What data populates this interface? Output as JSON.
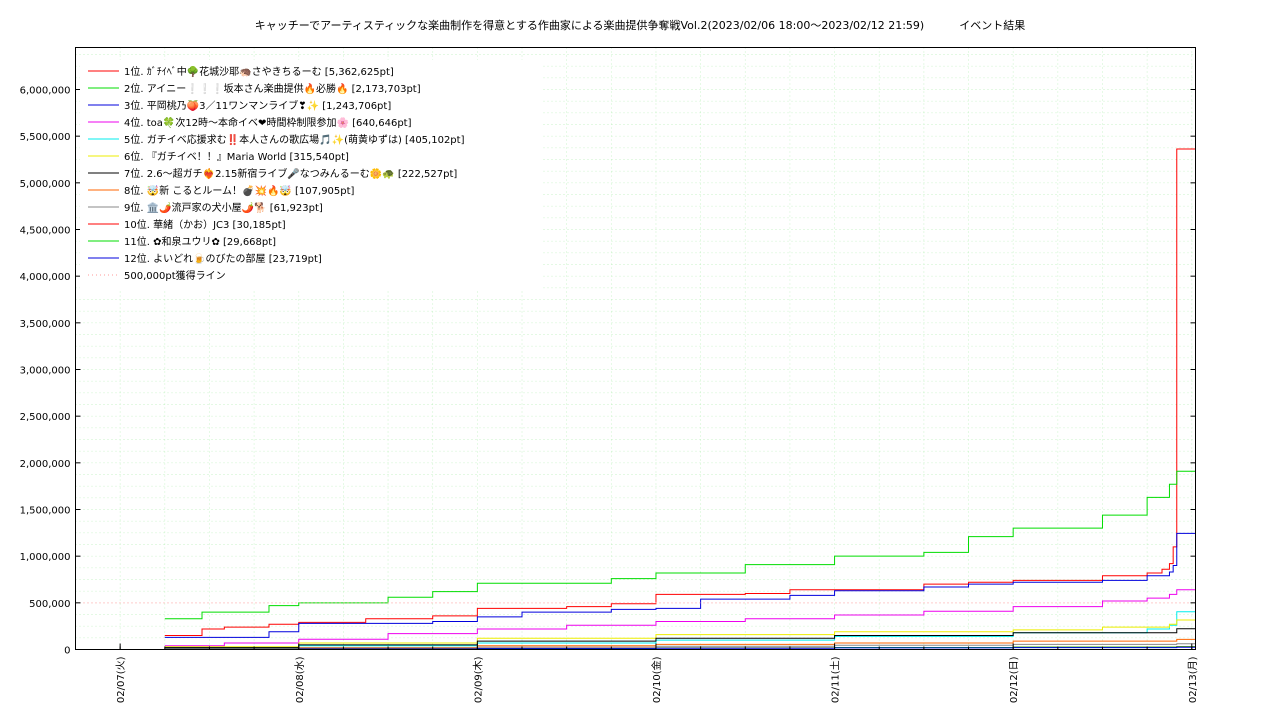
{
  "chart_data": {
    "type": "line",
    "title": "キャッチーでアーティスティックな楽曲制作を得意とする作曲家による楽曲提供争奪戦Vol.2(2023/02/06 18:00～2023/02/12 21:59)          イベント結果",
    "xlabel": "",
    "ylabel": "",
    "x_range": [
      "2023-02-06 18:00",
      "2023-02-13 00:30"
    ],
    "ylim": [
      0,
      6450000
    ],
    "y_ticks": [
      0,
      500000,
      1000000,
      1500000,
      2000000,
      2500000,
      3000000,
      3500000,
      4000000,
      4500000,
      5000000,
      5500000,
      6000000
    ],
    "y_tick_labels": [
      "0",
      "500,000",
      "1,000,000",
      "1,500,000",
      "2,000,000",
      "2,500,000",
      "3,000,000",
      "3,500,000",
      "4,000,000",
      "4,500,000",
      "5,000,000",
      "5,500,000",
      "6,000,000"
    ],
    "x_ticks": [
      "2023-02-07",
      "2023-02-08",
      "2023-02-09",
      "2023-02-10",
      "2023-02-11",
      "2023-02-12",
      "2023-02-13"
    ],
    "x_tick_labels": [
      "02/07(火)",
      "02/08(水)",
      "02/09(木)",
      "02/10(金)",
      "02/11(土)",
      "02/12(日)",
      "02/13(月)"
    ],
    "grid": true,
    "legend_position": "top-left",
    "series": [
      {
        "name": "1位. ｶﾞﾁｲﾍﾞ中🌳花城沙耶🦔さやきちるーむ [5,362,625pt]",
        "color": "#ff0000",
        "step": true,
        "x": [
          "2023-02-07 06:00",
          "2023-02-07 11:00",
          "2023-02-07 14:00",
          "2023-02-07 20:00",
          "2023-02-08 00:00",
          "2023-02-08 09:00",
          "2023-02-08 18:00",
          "2023-02-09 00:00",
          "2023-02-09 12:00",
          "2023-02-09 18:00",
          "2023-02-10 00:00",
          "2023-02-10 12:00",
          "2023-02-10 18:00",
          "2023-02-11 00:00",
          "2023-02-11 12:00",
          "2023-02-11 18:00",
          "2023-02-12 00:00",
          "2023-02-12 12:00",
          "2023-02-12 18:00",
          "2023-02-12 20:00",
          "2023-02-12 21:00",
          "2023-02-12 21:30",
          "2023-02-12 21:59",
          "2023-02-13 00:30"
        ],
        "y": [
          150000,
          220000,
          240000,
          270000,
          290000,
          330000,
          360000,
          440000,
          460000,
          490000,
          590000,
          600000,
          640000,
          640000,
          700000,
          720000,
          740000,
          790000,
          820000,
          860000,
          920000,
          1100000,
          5362625,
          5362625
        ]
      },
      {
        "name": "2位. アイニー❕❕❕坂本さん楽曲提供🔥必勝🔥 [2,173,703pt]",
        "color": "#00dd00",
        "step": true,
        "x": [
          "2023-02-07 06:00",
          "2023-02-07 11:00",
          "2023-02-07 20:00",
          "2023-02-08 00:00",
          "2023-02-08 12:00",
          "2023-02-08 18:00",
          "2023-02-09 00:00",
          "2023-02-09 12:00",
          "2023-02-09 18:00",
          "2023-02-10 00:00",
          "2023-02-10 12:00",
          "2023-02-10 18:00",
          "2023-02-11 00:00",
          "2023-02-11 12:00",
          "2023-02-11 18:00",
          "2023-02-12 00:00",
          "2023-02-12 12:00",
          "2023-02-12 18:00",
          "2023-02-12 21:00",
          "2023-02-12 21:59",
          "2023-02-13 00:30"
        ],
        "y": [
          330000,
          400000,
          470000,
          500000,
          560000,
          620000,
          710000,
          710000,
          760000,
          820000,
          910000,
          910000,
          1000000,
          1040000,
          1210000,
          1300000,
          1440000,
          1630000,
          1770000,
          1910000,
          2173703
        ]
      },
      {
        "name": "3位. 平岡桃乃🍑3／11ワンマンライブ❣✨ [1,243,706pt]",
        "color": "#0000dd",
        "step": true,
        "x": [
          "2023-02-07 06:00",
          "2023-02-07 14:00",
          "2023-02-07 20:00",
          "2023-02-08 00:00",
          "2023-02-08 18:00",
          "2023-02-09 00:00",
          "2023-02-09 06:00",
          "2023-02-09 18:00",
          "2023-02-10 00:00",
          "2023-02-10 06:00",
          "2023-02-10 18:00",
          "2023-02-11 00:00",
          "2023-02-11 12:00",
          "2023-02-11 18:00",
          "2023-02-12 00:00",
          "2023-02-12 12:00",
          "2023-02-12 18:00",
          "2023-02-12 21:00",
          "2023-02-12 21:30",
          "2023-02-12 21:59",
          "2023-02-13 00:30"
        ],
        "y": [
          130000,
          130000,
          190000,
          280000,
          300000,
          350000,
          400000,
          430000,
          440000,
          540000,
          580000,
          630000,
          670000,
          700000,
          720000,
          740000,
          790000,
          830000,
          900000,
          1243706,
          1243706
        ]
      },
      {
        "name": "4位. toa🍀次12時〜本命イベ❤時間枠制限参加🌸 [640,646pt]",
        "color": "#ee00ee",
        "step": true,
        "x": [
          "2023-02-07 06:00",
          "2023-02-07 14:00",
          "2023-02-08 00:00",
          "2023-02-08 12:00",
          "2023-02-09 00:00",
          "2023-02-09 12:00",
          "2023-02-10 00:00",
          "2023-02-10 12:00",
          "2023-02-11 00:00",
          "2023-02-11 12:00",
          "2023-02-12 00:00",
          "2023-02-12 12:00",
          "2023-02-12 18:00",
          "2023-02-12 21:00",
          "2023-02-12 21:59",
          "2023-02-13 00:30"
        ],
        "y": [
          40000,
          70000,
          110000,
          170000,
          220000,
          260000,
          300000,
          330000,
          370000,
          410000,
          460000,
          520000,
          550000,
          590000,
          640646,
          640646
        ]
      },
      {
        "name": "5位. ガチイベ応援求む‼️本人さんの歌広場🎵✨(萌黄ゆずは) [405,102pt]",
        "color": "#00eeee",
        "step": true,
        "x": [
          "2023-02-07 06:00",
          "2023-02-08 00:00",
          "2023-02-09 00:00",
          "2023-02-10 00:00",
          "2023-02-11 00:00",
          "2023-02-12 00:00",
          "2023-02-12 18:00",
          "2023-02-12 21:00",
          "2023-02-12 21:59",
          "2023-02-13 00:30"
        ],
        "y": [
          20000,
          40000,
          70000,
          100000,
          140000,
          180000,
          220000,
          260000,
          405102,
          405102
        ]
      },
      {
        "name": "6位. 『ガチイベ！！』Maria World [315,540pt]",
        "color": "#eeee00",
        "step": true,
        "x": [
          "2023-02-07 06:00",
          "2023-02-08 00:00",
          "2023-02-09 00:00",
          "2023-02-10 00:00",
          "2023-02-11 00:00",
          "2023-02-12 00:00",
          "2023-02-12 12:00",
          "2023-02-12 21:00",
          "2023-02-12 21:59",
          "2023-02-13 00:30"
        ],
        "y": [
          30000,
          70000,
          120000,
          160000,
          190000,
          210000,
          240000,
          270000,
          315540,
          315540
        ]
      },
      {
        "name": "7位. 2.6〜超ガチ❤️‍🔥2.15新宿ライブ🎤なつみんるーむ🌼🐢 [222,527pt]",
        "color": "#000000",
        "step": true,
        "x": [
          "2023-02-07 06:00",
          "2023-02-08 00:00",
          "2023-02-09 00:00",
          "2023-02-10 00:00",
          "2023-02-11 00:00",
          "2023-02-12 00:00",
          "2023-02-12 21:59",
          "2023-02-13 00:30"
        ],
        "y": [
          20000,
          50000,
          90000,
          120000,
          150000,
          180000,
          222527,
          222527
        ]
      },
      {
        "name": "8位. 🤯新 こるとルーム！💣💥🔥🤯 [107,905pt]",
        "color": "#ff6600",
        "step": true,
        "x": [
          "2023-02-07 06:00",
          "2023-02-08 00:00",
          "2023-02-09 00:00",
          "2023-02-10 00:00",
          "2023-02-11 00:00",
          "2023-02-12 00:00",
          "2023-02-12 21:59",
          "2023-02-13 00:30"
        ],
        "y": [
          10000,
          20000,
          40000,
          55000,
          70000,
          90000,
          107905,
          107905
        ]
      },
      {
        "name": "9位. 🏛️🌶️流戸家の犬小屋🌶️🐕 [61,923pt]",
        "color": "#888888",
        "step": true,
        "x": [
          "2023-02-07 06:00",
          "2023-02-08 00:00",
          "2023-02-09 00:00",
          "2023-02-10 00:00",
          "2023-02-11 00:00",
          "2023-02-12 00:00",
          "2023-02-12 21:59",
          "2023-02-13 00:30"
        ],
        "y": [
          10000,
          15000,
          25000,
          35000,
          45000,
          55000,
          61923,
          61923
        ]
      },
      {
        "name": "10位. 華緒（かお）JC3 [30,185pt]",
        "color": "#ff0000",
        "step": true,
        "x": [
          "2023-02-07 06:00",
          "2023-02-08 00:00",
          "2023-02-09 00:00",
          "2023-02-10 00:00",
          "2023-02-11 00:00",
          "2023-02-12 00:00",
          "2023-02-12 21:59",
          "2023-02-13 00:30"
        ],
        "y": [
          5000,
          8000,
          12000,
          17000,
          22000,
          26000,
          30185,
          30185
        ]
      },
      {
        "name": "11位. ✿和泉ユウリ✿ [29,668pt]",
        "color": "#00dd00",
        "step": true,
        "x": [
          "2023-02-07 06:00",
          "2023-02-08 00:00",
          "2023-02-09 00:00",
          "2023-02-10 00:00",
          "2023-02-11 00:00",
          "2023-02-12 00:00",
          "2023-02-12 21:59",
          "2023-02-13 00:30"
        ],
        "y": [
          4000,
          7000,
          11000,
          16000,
          21000,
          25000,
          29668,
          29668
        ]
      },
      {
        "name": "12位. よいどれ🍺のびたの部屋 [23,719pt]",
        "color": "#0000dd",
        "step": true,
        "x": [
          "2023-02-07 06:00",
          "2023-02-08 00:00",
          "2023-02-09 00:00",
          "2023-02-10 00:00",
          "2023-02-11 00:00",
          "2023-02-12 00:00",
          "2023-02-12 21:59",
          "2023-02-13 00:30"
        ],
        "y": [
          3000,
          6000,
          9000,
          13000,
          17000,
          20000,
          23719,
          23719
        ]
      },
      {
        "name": "500,000pt獲得ライン",
        "color": "#ff9999",
        "dotted": true,
        "step": false,
        "x": [
          "2023-02-06 18:00",
          "2023-02-13 00:30"
        ],
        "y": [
          500000,
          500000
        ]
      }
    ]
  }
}
